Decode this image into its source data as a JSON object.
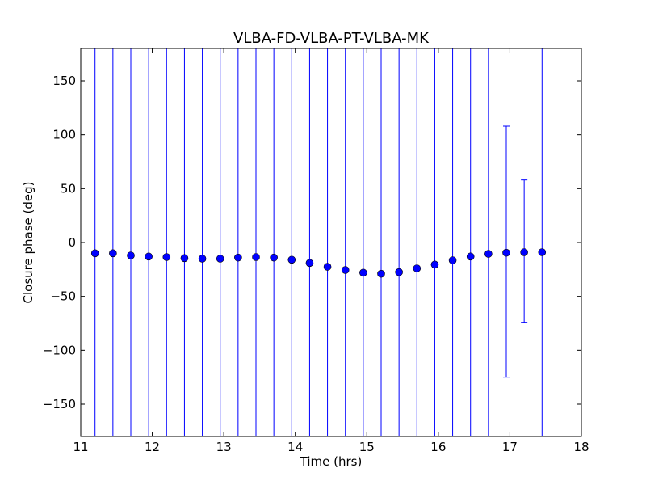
{
  "chart_data": {
    "type": "scatter",
    "title": "VLBA-FD-VLBA-PT-VLBA-MK",
    "xlabel": "Time (hrs)",
    "ylabel": "Closure phase (deg)",
    "xlim": [
      11,
      18
    ],
    "ylim": [
      -180,
      180
    ],
    "xticks": [
      11,
      12,
      13,
      14,
      15,
      16,
      17,
      18
    ],
    "yticks": [
      -150,
      -100,
      -50,
      0,
      50,
      100,
      150
    ],
    "ytick_labels": [
      "−150",
      "−100",
      "−50",
      "0",
      "50",
      "100",
      "150"
    ],
    "grid": false,
    "marker_color": "#0000ff",
    "errorbar_color": "#0000ff",
    "series": [
      {
        "x": [
          11.2,
          11.45,
          11.7,
          11.95,
          12.2,
          12.45,
          12.7,
          12.95,
          13.2,
          13.45,
          13.7,
          13.95,
          14.2,
          14.45,
          14.7,
          14.95,
          15.2,
          15.45,
          15.7,
          15.95,
          16.2,
          16.45,
          16.7,
          16.95,
          17.2,
          17.45
        ],
        "y": [
          -10,
          -10,
          -12,
          -13,
          -13.5,
          -14.5,
          -15,
          -15,
          -14,
          -13.5,
          -14,
          -16,
          -19,
          -22.5,
          -25.5,
          -28,
          -29,
          -27.5,
          -24,
          -20.5,
          -16.5,
          -13,
          -10.5,
          -9.5,
          -9,
          -9
        ],
        "yerr_low": [
          -180,
          -180,
          -180,
          -180,
          -180,
          -180,
          -180,
          -180,
          -180,
          -180,
          -180,
          -180,
          -180,
          -180,
          -180,
          -180,
          -180,
          -180,
          -180,
          -180,
          -180,
          -180,
          -180,
          -125,
          -74,
          -180
        ],
        "yerr_high": [
          180,
          180,
          180,
          180,
          180,
          180,
          180,
          180,
          180,
          180,
          180,
          180,
          180,
          180,
          180,
          180,
          180,
          180,
          180,
          180,
          180,
          180,
          180,
          108,
          58,
          180
        ]
      }
    ]
  }
}
